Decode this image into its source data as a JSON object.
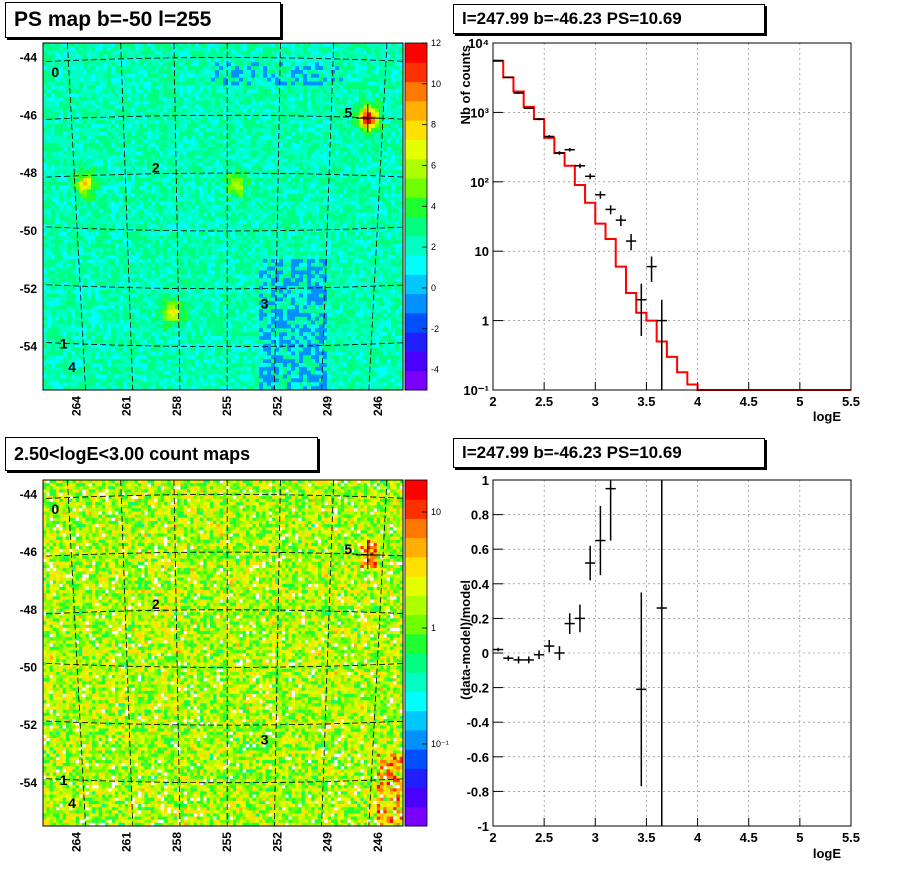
{
  "panels": {
    "tl_title": "PS map b=-50 l=255",
    "bl_title": "2.50<logE<3.00 count maps",
    "tr_title": "l=247.99 b=-46.23 PS=10.69",
    "br_title": "l=247.99 b=-46.23 PS=10.69"
  },
  "colors": {
    "model_line": "#ff0000",
    "data_marker": "#000000",
    "grid": "#888888"
  },
  "chart_data": [
    {
      "type": "heatmap",
      "title": "PS map b=-50 l=255",
      "y_ticks": [
        "-44",
        "-46",
        "-48",
        "-50",
        "-52",
        "-54"
      ],
      "x_ticks": [
        "264",
        "261",
        "258",
        "255",
        "252",
        "249",
        "246"
      ],
      "colorbar_ticks": [
        "12",
        "10",
        "8",
        "6",
        "4",
        "2",
        "0",
        "-2",
        "-4"
      ],
      "colorbar_range": [
        -5,
        12
      ],
      "source_labels": [
        {
          "label": "0",
          "l": 265.5,
          "b": -44.5
        },
        {
          "label": "5",
          "l": 248.0,
          "b": -45.9
        },
        {
          "label": "2",
          "l": 259.5,
          "b": -47.8
        },
        {
          "label": "3",
          "l": 253.0,
          "b": -52.5
        },
        {
          "label": "1",
          "l": 265.0,
          "b": -53.9
        },
        {
          "label": "4",
          "l": 264.5,
          "b": -54.7
        }
      ],
      "hotspots": [
        {
          "l": 246.6,
          "b": -46.1,
          "value": 10
        },
        {
          "l": 263.5,
          "b": -48.4,
          "value": 5
        },
        {
          "l": 254.5,
          "b": -48.4,
          "value": 4
        },
        {
          "l": 258.3,
          "b": -52.8,
          "value": 5
        }
      ]
    },
    {
      "type": "heatmap",
      "title": "2.50<logE<3.00 count maps",
      "y_ticks": [
        "-44",
        "-46",
        "-48",
        "-50",
        "-52",
        "-54"
      ],
      "x_ticks": [
        "264",
        "261",
        "258",
        "255",
        "252",
        "249",
        "246"
      ],
      "colorbar_ticks": [
        "10",
        "1",
        "10⁻¹"
      ],
      "colorbar_scale": "log",
      "source_labels": [
        {
          "label": "0",
          "l": 265.5,
          "b": -44.5
        },
        {
          "label": "5",
          "l": 248.0,
          "b": -45.9
        },
        {
          "label": "2",
          "l": 259.5,
          "b": -47.8
        },
        {
          "label": "3",
          "l": 253.0,
          "b": -52.5
        },
        {
          "label": "1",
          "l": 265.0,
          "b": -53.9
        },
        {
          "label": "4",
          "l": 264.5,
          "b": -54.7
        }
      ]
    },
    {
      "type": "line",
      "title": "l=247.99 b=-46.23 PS=10.69",
      "xlabel": "logE",
      "ylabel": "Nb of counts",
      "xlim": [
        2,
        5.5
      ],
      "ylim": [
        0.1,
        10000
      ],
      "yscale": "log",
      "x_ticks": [
        "2",
        "2.5",
        "3",
        "3.5",
        "4",
        "4.5",
        "5",
        "5.5"
      ],
      "y_ticks": [
        "10⁻¹",
        "1",
        "10",
        "10²",
        "10³",
        "10⁴"
      ],
      "grid": true,
      "series": [
        {
          "style": "histogram",
          "bin_edges": [
            2.0,
            2.1,
            2.2,
            2.3,
            2.4,
            2.5,
            2.6,
            2.7,
            2.8,
            2.9,
            3.0,
            3.1,
            3.2,
            3.3,
            3.4,
            3.5,
            3.6,
            3.7,
            3.8,
            3.9,
            4.0,
            4.1,
            5.5
          ],
          "values": [
            5500,
            3200,
            2000,
            1200,
            800,
            430,
            260,
            170,
            90,
            50,
            25,
            15,
            6,
            2.5,
            1.3,
            1.0,
            0.5,
            0.3,
            0.18,
            0.12,
            0.1,
            0.1
          ]
        },
        {
          "style": "errorbars",
          "x": [
            2.05,
            2.15,
            2.25,
            2.35,
            2.45,
            2.55,
            2.65,
            2.75,
            2.85,
            2.95,
            3.05,
            3.15,
            3.25,
            3.35,
            3.45,
            3.55,
            3.65
          ],
          "y": [
            5600,
            3200,
            1900,
            1150,
            800,
            450,
            260,
            290,
            170,
            120,
            65,
            40,
            28,
            14,
            2,
            6,
            1
          ],
          "yerr_low": [
            75,
            57,
            44,
            34,
            28,
            21,
            16,
            17,
            13,
            11,
            8,
            6,
            5,
            3.7,
            1.4,
            2.4,
            1
          ],
          "yerr_high": [
            75,
            57,
            44,
            34,
            28,
            21,
            16,
            17,
            13,
            11,
            8,
            6,
            5,
            3.7,
            1.4,
            2.4,
            1
          ]
        }
      ]
    },
    {
      "type": "scatter",
      "title": "l=247.99 b=-46.23 PS=10.69",
      "xlabel": "logE",
      "ylabel": "(data-model)/model",
      "xlim": [
        2,
        5.5
      ],
      "ylim": [
        -1,
        1
      ],
      "x_ticks": [
        "2",
        "2.5",
        "3",
        "3.5",
        "4",
        "4.5",
        "5",
        "5.5"
      ],
      "y_ticks": [
        "-1",
        "-0.8",
        "-0.6",
        "-0.4",
        "-0.2",
        "0",
        "0.2",
        "0.4",
        "0.6",
        "0.8",
        "1"
      ],
      "grid": true,
      "x": [
        2.05,
        2.15,
        2.25,
        2.35,
        2.45,
        2.55,
        2.65,
        2.75,
        2.85,
        2.95,
        3.05,
        3.15,
        3.45,
        3.65
      ],
      "y": [
        0.02,
        -0.03,
        -0.04,
        -0.04,
        -0.01,
        0.04,
        0.0,
        0.17,
        0.2,
        0.52,
        0.65,
        0.95,
        -0.21,
        0.26
      ],
      "yerr": [
        0.01,
        0.015,
        0.02,
        0.02,
        0.025,
        0.035,
        0.04,
        0.06,
        0.08,
        0.1,
        0.2,
        0.3,
        0.56,
        1.3
      ]
    }
  ]
}
